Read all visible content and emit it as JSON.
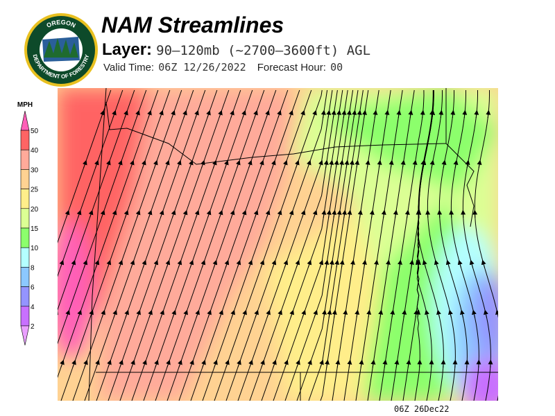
{
  "header": {
    "title": "NAM Streamlines",
    "layer_label": "Layer:",
    "layer_value": "90–120mb (~2700–3600ft) AGL",
    "valid_label": "Valid Time:",
    "valid_value": "06Z 12/26/2022",
    "forecast_label": "Forecast Hour:",
    "forecast_value": "00"
  },
  "logo": {
    "text_top": "OREGON",
    "text_bottom": "DEPARTMENT OF FORESTRY",
    "colors": {
      "ring": "#0d4a2a",
      "rim": "#e8c020"
    }
  },
  "colorbar": {
    "unit": "MPH",
    "ticks": [
      "50",
      "40",
      "30",
      "25",
      "20",
      "15",
      "10",
      "8",
      "6",
      "4",
      "2"
    ],
    "colors": [
      "#ff5fb8",
      "#ff6464",
      "#ffaa9a",
      "#ffd292",
      "#ffee8a",
      "#dcff94",
      "#8cff6c",
      "#b4ffff",
      "#8cc8ff",
      "#9494ff",
      "#c870ff",
      "#eaa0ff"
    ]
  },
  "footer": {
    "timestamp": "06Z 26Dec22"
  }
}
